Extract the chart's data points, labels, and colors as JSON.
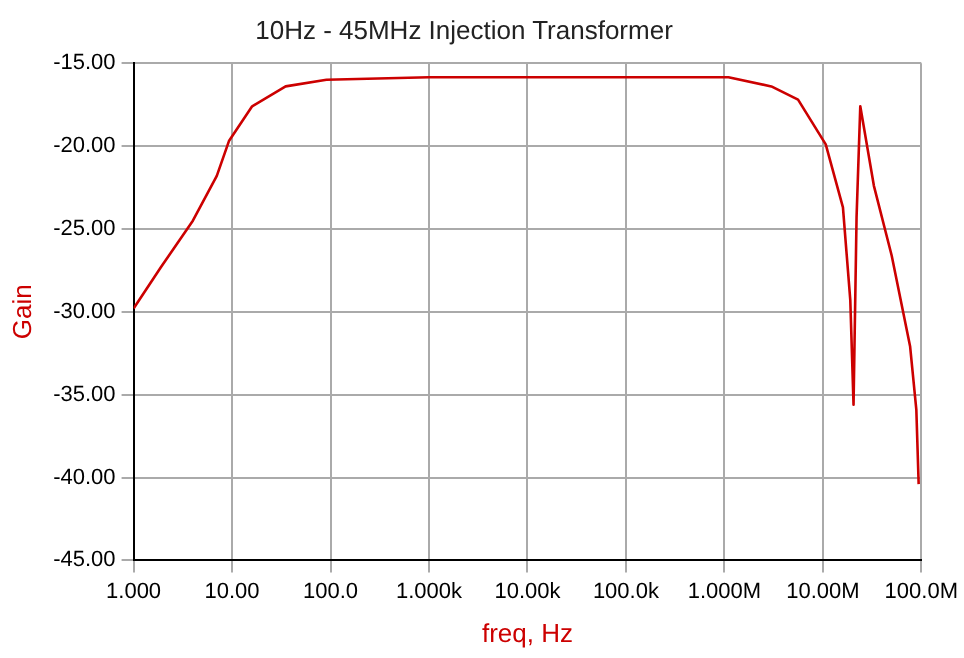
{
  "chart_data": {
    "type": "line",
    "title": "10Hz - 45MHz Injection Transformer",
    "xlabel": "freq, Hz",
    "ylabel": "Gain",
    "x": [
      1,
      1.9,
      4,
      7,
      9.3,
      16,
      35,
      91,
      1000,
      100000,
      1100000,
      3000000,
      5600000,
      10700000,
      16000000,
      19000000,
      20500000,
      22000000,
      24000000,
      33000000,
      50000000,
      77000000,
      89000000,
      94000000
    ],
    "series": [
      {
        "color": "#cc0000",
        "values": [
          -29.8,
          -27.3,
          -24.5,
          -21.8,
          -19.7,
          -17.6,
          -16.4,
          -16.0,
          -15.85,
          -15.85,
          -15.85,
          -16.4,
          -17.2,
          -19.9,
          -23.7,
          -29.3,
          -35.6,
          -24.3,
          -17.6,
          -22.4,
          -26.6,
          -32.1,
          -35.9,
          -40.4
        ]
      }
    ],
    "log": "x",
    "xlim": [
      1,
      100000000
    ],
    "xticks": [
      {
        "value": 1,
        "label": "1.000"
      },
      {
        "value": 10,
        "label": "10.00"
      },
      {
        "value": 100,
        "label": "100.0"
      },
      {
        "value": 1000,
        "label": "1.000k"
      },
      {
        "value": 10000,
        "label": "10.00k"
      },
      {
        "value": 100000,
        "label": "100.0k"
      },
      {
        "value": 1000000,
        "label": "1.000M"
      },
      {
        "value": 10000000,
        "label": "10.00M"
      },
      {
        "value": 100000000,
        "label": "100.0M"
      }
    ],
    "ylim": [
      -45,
      -15
    ],
    "yticks": [
      {
        "value": -15,
        "label": "-15.00"
      },
      {
        "value": -20,
        "label": "-20.00"
      },
      {
        "value": -25,
        "label": "-25.00"
      },
      {
        "value": -30,
        "label": "-30.00"
      },
      {
        "value": -35,
        "label": "-35.00"
      },
      {
        "value": -40,
        "label": "-40.00"
      },
      {
        "value": -45,
        "label": "-45.00"
      }
    ],
    "grid": true,
    "legend": false
  }
}
